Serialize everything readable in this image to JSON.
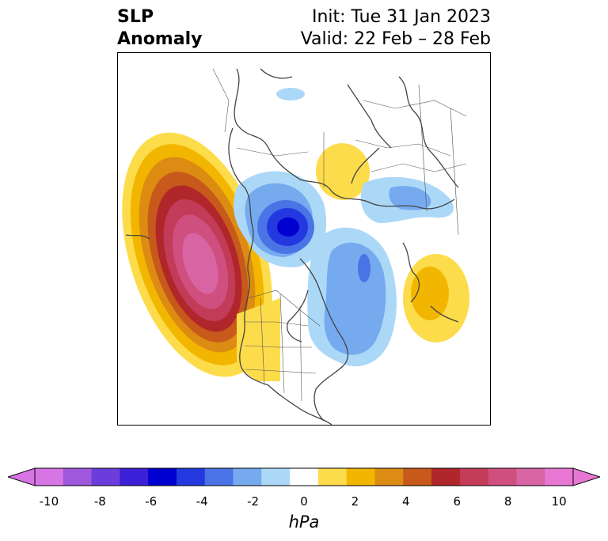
{
  "title": {
    "left_line1": "SLP",
    "left_line2": "Anomaly",
    "right_line1": "Init: Tue 31 Jan 2023",
    "right_line2": "Valid: 22 Feb – 28 Feb"
  },
  "map": {
    "projection": "north-polar-stereographic",
    "features": [
      "coastlines",
      "country borders",
      "US states",
      "Canadian provinces"
    ],
    "anomalies": [
      {
        "region": "NE Pacific / Gulf of Alaska",
        "sign": "positive",
        "peak_hPa": 9
      },
      {
        "region": "Western US",
        "sign": "positive",
        "peak_hPa": 1
      },
      {
        "region": "Canadian Arctic Archipelago",
        "sign": "negative",
        "peak_hPa": -6
      },
      {
        "region": "Siberia / central Russia",
        "sign": "negative",
        "peak_hPa": -2
      },
      {
        "region": "Kara Sea / N Russia",
        "sign": "positive",
        "peak_hPa": 1
      },
      {
        "region": "Greenland Sea / N Atlantic",
        "sign": "negative",
        "peak_hPa": -4
      },
      {
        "region": "Eastern N America / NW Atlantic",
        "sign": "negative",
        "peak_hPa": -3
      },
      {
        "region": "Central N Atlantic",
        "sign": "positive",
        "peak_hPa": 2
      },
      {
        "region": "Hudson Bay",
        "sign": "negative",
        "peak_hPa": -1
      }
    ]
  },
  "colorbar": {
    "units": "hPa",
    "ticks": [
      "-10",
      "-8",
      "-6",
      "-4",
      "-2",
      "0",
      "2",
      "4",
      "6",
      "8",
      "10"
    ],
    "levels": [
      -10,
      -9,
      -8,
      -7,
      -6,
      -5,
      -4,
      -3,
      -2,
      -1,
      1,
      2,
      3,
      4,
      5,
      6,
      7,
      8,
      9,
      10
    ],
    "colors": [
      "#d775e5",
      "#9d58de",
      "#6b3ddb",
      "#3b20d7",
      "#0000d0",
      "#2338df",
      "#4a74e5",
      "#76aaef",
      "#acd8f8",
      "#ffffff",
      "#fddc4b",
      "#f3b600",
      "#dc8b13",
      "#c75a1a",
      "#b0262a",
      "#c23b58",
      "#cf4f7e",
      "#d864a4",
      "#e877d4"
    ],
    "extend": "both"
  }
}
